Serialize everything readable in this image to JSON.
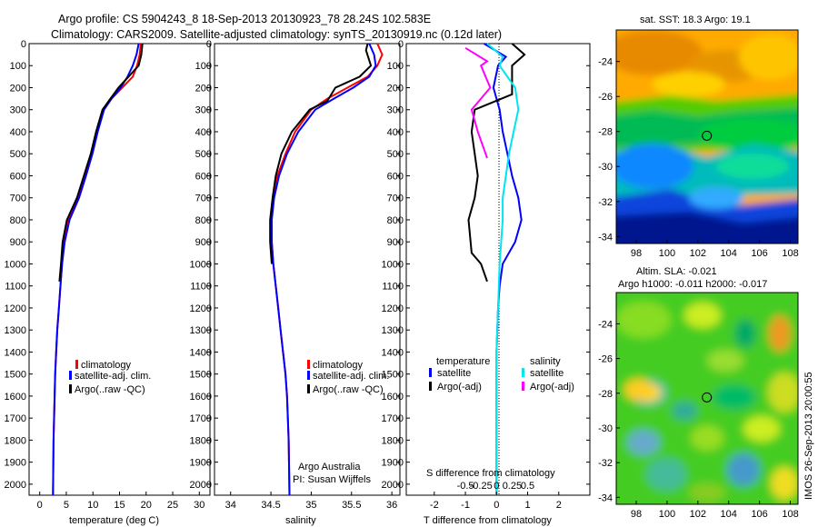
{
  "header": {
    "title_line1": "Argo profile: CS 5904243_8 18-Sep-2013 20130923_78 28.24S 102.583E",
    "title_line2": "Climatology: CARS2009. Satellite-adjusted climatology: synTS_20130919.nc (0.12d later)"
  },
  "colors": {
    "climatology": "#ff0000",
    "satellite": "#0000ff",
    "argo": "#000000",
    "satellite_salinity": "#00e5ee",
    "argo_adj_salinity": "#ff00ff"
  },
  "credits": {
    "line1": "Argo Australia",
    "line2": "PI: Susan Wijffels",
    "timestamp": "IMOS 26-Sep-2013 20:00:55"
  },
  "chart_data": [
    {
      "type": "line",
      "id": "temperature",
      "xlabel": "temperature (deg C)",
      "ylabel": "",
      "xlim": [
        -2,
        32
      ],
      "ylim": [
        2050,
        0
      ],
      "xticks": [
        0,
        5,
        10,
        15,
        20,
        25,
        30
      ],
      "yticks": [
        0,
        100,
        200,
        300,
        400,
        500,
        600,
        700,
        800,
        900,
        1000,
        1100,
        1200,
        1300,
        1400,
        1500,
        1600,
        1700,
        1800,
        1900,
        2000
      ],
      "legend": [
        "climatology",
        "satellite-adj. clim.",
        "Argo(..raw -QC)"
      ],
      "series": [
        {
          "name": "climatology",
          "color": "#ff0000",
          "x": [
            19,
            18.8,
            18.3,
            17.5,
            15.5,
            13.5,
            12,
            10.8,
            9.7,
            8.4,
            7.2,
            5.4,
            4.6,
            4.2,
            3.9,
            3.6,
            3.3,
            3.1,
            2.9,
            2.8,
            2.6,
            2.5
          ],
          "y": [
            0,
            50,
            100,
            150,
            200,
            250,
            300,
            400,
            500,
            600,
            700,
            800,
            900,
            1000,
            1100,
            1200,
            1300,
            1400,
            1500,
            1600,
            1800,
            2050
          ]
        },
        {
          "name": "satellite-adj. clim.",
          "color": "#0000ff",
          "x": [
            18.6,
            18.2,
            17.5,
            16.5,
            15.2,
            13.5,
            12.1,
            10.9,
            9.9,
            8.7,
            7.4,
            5.6,
            4.7,
            4.2,
            3.9,
            3.6,
            3.3,
            3.1,
            2.9,
            2.8,
            2.6,
            2.5
          ],
          "y": [
            0,
            50,
            100,
            150,
            200,
            250,
            300,
            400,
            500,
            600,
            700,
            800,
            900,
            1000,
            1100,
            1200,
            1300,
            1400,
            1500,
            1600,
            1800,
            2050
          ]
        },
        {
          "name": "Argo(..raw -QC)",
          "color": "#000000",
          "x": [
            19.3,
            19.1,
            18.6,
            16.7,
            14.8,
            13.3,
            11.8,
            10.6,
            9.6,
            8.3,
            7.0,
            5.1,
            4.3,
            4.0,
            3.7
          ],
          "y": [
            0,
            50,
            100,
            150,
            200,
            250,
            300,
            400,
            500,
            600,
            700,
            800,
            900,
            1000,
            1080
          ]
        }
      ]
    },
    {
      "type": "line",
      "id": "salinity",
      "xlabel": "salinity",
      "ylabel": "",
      "xlim": [
        33.8,
        36.1
      ],
      "ylim": [
        2050,
        0
      ],
      "xticks": [
        34,
        34.5,
        35,
        35.5,
        36
      ],
      "legend": [
        "climatology",
        "satellite-adj. clim.",
        "Argo(..raw -QC)"
      ],
      "series": [
        {
          "name": "climatology",
          "color": "#ff0000",
          "x": [
            35.82,
            35.88,
            35.82,
            35.7,
            35.45,
            35.2,
            35.0,
            34.8,
            34.68,
            34.58,
            34.53,
            34.5,
            34.51,
            34.53,
            34.56,
            34.59,
            34.62,
            34.65,
            34.68,
            34.7,
            34.72,
            34.73
          ],
          "y": [
            0,
            50,
            100,
            150,
            200,
            250,
            300,
            400,
            500,
            600,
            700,
            800,
            900,
            1000,
            1100,
            1200,
            1300,
            1400,
            1500,
            1600,
            1800,
            2050
          ]
        },
        {
          "name": "satellite-adj. clim.",
          "color": "#0000ff",
          "x": [
            35.72,
            35.78,
            35.8,
            35.72,
            35.52,
            35.28,
            35.05,
            34.84,
            34.7,
            34.6,
            34.54,
            34.51,
            34.51,
            34.53,
            34.56,
            34.59,
            34.62,
            34.65,
            34.68,
            34.7,
            34.72,
            34.73
          ],
          "y": [
            0,
            50,
            100,
            150,
            200,
            250,
            300,
            400,
            500,
            600,
            700,
            800,
            900,
            1000,
            1100,
            1200,
            1300,
            1400,
            1500,
            1600,
            1800,
            2050
          ]
        },
        {
          "name": "Argo(..raw -QC)",
          "color": "#000000",
          "x": [
            35.7,
            35.68,
            35.74,
            35.6,
            35.3,
            35.2,
            34.98,
            34.76,
            34.63,
            34.56,
            34.52,
            34.49,
            34.49,
            34.51
          ],
          "y": [
            0,
            30,
            100,
            150,
            200,
            260,
            300,
            400,
            500,
            600,
            700,
            800,
            900,
            1000
          ]
        }
      ]
    },
    {
      "type": "line",
      "id": "difference",
      "xlabel": "T difference from climatology",
      "top_xlabel": "S difference from climatology",
      "xlim": [
        -2.9,
        3.0
      ],
      "ylim": [
        2050,
        0
      ],
      "xticks": [
        -2,
        -1,
        0,
        1,
        2
      ],
      "top_xticks": [
        "-0.5",
        "-0.25",
        "0",
        "0.25",
        "0.5"
      ],
      "legend_temperature_title": "temperature",
      "legend_salinity_title": "salinity",
      "legend_temperature": [
        "satellite",
        "Argo(-adj)"
      ],
      "legend_salinity": [
        "satellite",
        "Argo(-adj)"
      ],
      "series": [
        {
          "name": "T satellite",
          "color": "#0000ff",
          "x": [
            -0.4,
            0.3,
            0.05,
            -0.1,
            0.1,
            0.2,
            0.35,
            0.5,
            0.7,
            0.8,
            0.6,
            0.2,
            0.1,
            0.05,
            0.0,
            0.0,
            0.0,
            0.0
          ],
          "y": [
            0,
            60,
            100,
            200,
            300,
            400,
            500,
            600,
            700,
            800,
            900,
            1000,
            1100,
            1200,
            1400,
            1600,
            1800,
            2050
          ]
        },
        {
          "name": "T Argo(-adj)",
          "color": "#000000",
          "x": [
            0.5,
            0.9,
            0.5,
            0.5,
            -0.7,
            -0.8,
            -0.7,
            -0.6,
            -0.7,
            -0.9,
            -0.8,
            -0.5,
            -0.3
          ],
          "y": [
            0,
            50,
            100,
            230,
            300,
            400,
            500,
            600,
            700,
            800,
            950,
            1000,
            1080
          ]
        },
        {
          "name": "S satellite",
          "color": "#00e5ee",
          "x": [
            -0.3,
            0.2,
            0.1,
            0.6,
            0.7,
            0.55,
            0.4,
            0.3,
            0.2,
            0.2,
            0.15,
            0.1,
            0.05,
            0.0,
            0.0
          ],
          "y": [
            0,
            60,
            100,
            200,
            300,
            400,
            500,
            600,
            700,
            800,
            900,
            1000,
            1200,
            1400,
            2050
          ]
        },
        {
          "name": "S Argo(-adj)",
          "color": "#ff00ff",
          "x": [
            -1.0,
            -0.3,
            -0.5,
            -0.2,
            -0.8,
            -0.6,
            -0.35,
            -0.3
          ],
          "y": [
            20,
            80,
            100,
            200,
            300,
            400,
            500,
            520
          ]
        }
      ]
    },
    {
      "type": "heatmap",
      "id": "sst_map",
      "title": "sat. SST: 18.3 Argo: 19.1",
      "xticks": [
        98,
        100,
        102,
        104,
        106,
        108
      ],
      "yticks": [
        -24,
        -26,
        -28,
        -30,
        -32,
        -34
      ],
      "marker_lon": 102.583,
      "marker_lat": -28.24
    },
    {
      "type": "heatmap",
      "id": "sla_map",
      "title_line1": "Altim. SLA: -0.021",
      "title_line2": "Argo h1000: -0.011 h2000: -0.017",
      "xticks": [
        98,
        100,
        102,
        104,
        106,
        108
      ],
      "yticks": [
        -24,
        -26,
        -28,
        -30,
        -32,
        -34
      ],
      "marker_lon": 102.583,
      "marker_lat": -28.24
    }
  ]
}
